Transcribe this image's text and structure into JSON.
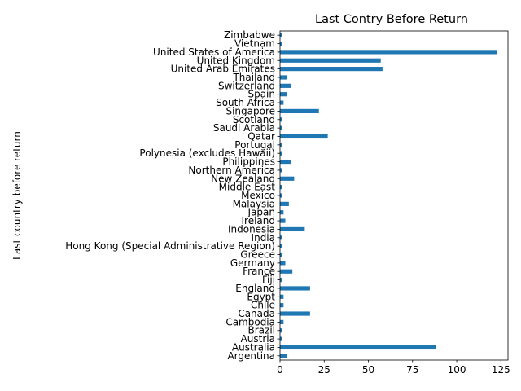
{
  "chart_data": {
    "type": "bar",
    "orientation": "horizontal",
    "title": "Last Contry Before Return",
    "xlabel": "",
    "ylabel": "Last country before return",
    "xlim": [
      0,
      129
    ],
    "xticks": [
      0,
      25,
      50,
      75,
      100,
      125
    ],
    "bar_color": "#1f77b4",
    "grid": false,
    "categories": [
      "Argentina",
      "Australia",
      "Austria",
      "Brazil",
      "Cambodia",
      "Canada",
      "Chile",
      "Egypt",
      "England",
      "Fiji",
      "France",
      "Germany",
      "Greece",
      "Hong Kong (Special Administrative Region)",
      "India",
      "Indonesia",
      "Ireland",
      "Japan",
      "Malaysia",
      "Mexico",
      "Middle East",
      "New Zealand",
      "Northern America",
      "Philippines",
      "Polynesia (excludes Hawaii)",
      "Portugal",
      "Qatar",
      "Saudi Arabia",
      "Scotland",
      "Singapore",
      "South Africa",
      "Spain",
      "Switzerland",
      "Thailand",
      "United Arab Emirates",
      "United Kingdom",
      "United States of America",
      "Vietnam",
      "Zimbabwe"
    ],
    "values": [
      4,
      88,
      1,
      1,
      2,
      17,
      2,
      2,
      17,
      1,
      7,
      3,
      1,
      1,
      1,
      14,
      3,
      2,
      5,
      1,
      1,
      8,
      1,
      6,
      1,
      1,
      27,
      1,
      1,
      22,
      2,
      4,
      6,
      4,
      58,
      57,
      123,
      1,
      1
    ]
  }
}
